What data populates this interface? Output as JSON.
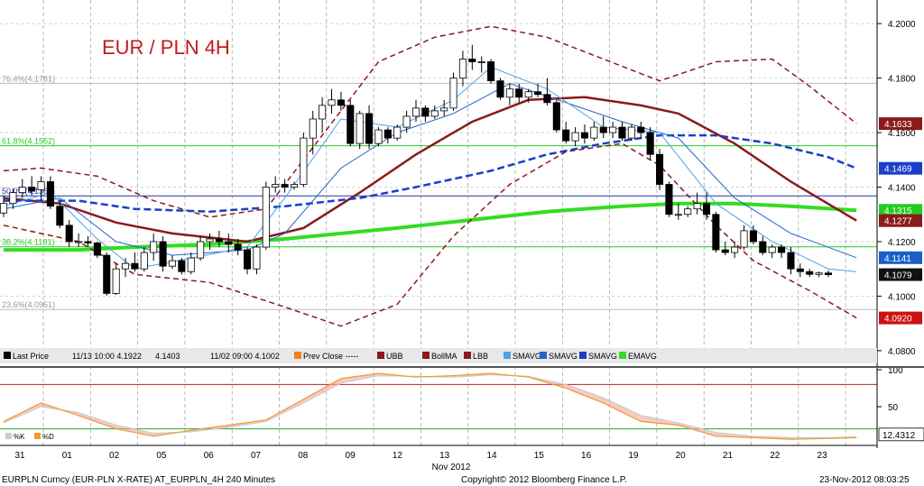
{
  "chart_data": {
    "type": "candlestick",
    "title": "EUR / PLN 4H",
    "y_range": [
      4.075,
      4.208
    ],
    "y_ticks": [
      "4.0800",
      "4.1000",
      "4.1200",
      "4.1400",
      "4.1600",
      "4.1800",
      "4.2000"
    ],
    "x_ticks": [
      {
        "label": "31",
        "x": 0.5
      },
      {
        "label": "01",
        "x": 1.5
      },
      {
        "label": "02",
        "x": 2.5
      },
      {
        "label": "05",
        "x": 3.5
      },
      {
        "label": "06",
        "x": 4.5
      },
      {
        "label": "07",
        "x": 5.5
      },
      {
        "label": "08",
        "x": 6.5
      },
      {
        "label": "09",
        "x": 7.5
      },
      {
        "label": "12",
        "x": 8.5
      },
      {
        "label": "13",
        "x": 9.5
      },
      {
        "label": "14",
        "x": 10.5
      },
      {
        "label": "15",
        "x": 11.5
      },
      {
        "label": "16",
        "x": 12.5
      },
      {
        "label": "19",
        "x": 13.5
      },
      {
        "label": "20",
        "x": 14.5
      },
      {
        "label": "21",
        "x": 15.5
      },
      {
        "label": "22",
        "x": 16.5
      },
      {
        "label": "23",
        "x": 17.5
      }
    ],
    "month_label": "Nov 2012",
    "fib_levels": [
      {
        "label": "76.4%(4.1781)",
        "value": 4.1781
      },
      {
        "label": "61.8%(4.1552)",
        "value": 4.1552
      },
      {
        "label": "50.0%(4.1368)",
        "value": 4.1368
      },
      {
        "label": "38.2%(4.1181)",
        "value": 4.1181
      },
      {
        "label": "23.6%(4.0951)",
        "value": 4.0951
      }
    ],
    "price_tags": [
      {
        "value": "4.1633",
        "color": "#8b1a1a"
      },
      {
        "value": "4.1469",
        "color": "#1a3ec8"
      },
      {
        "value": "4.1315",
        "color": "#22cc22"
      },
      {
        "value": "4.1277",
        "color": "#8b1a1a"
      },
      {
        "value": "4.1141",
        "color": "#1a5fc8"
      },
      {
        "value": "4.1079",
        "color": "#111111"
      },
      {
        "value": "4.0920",
        "color": "#cc1111"
      }
    ],
    "legend": [
      {
        "label": "Last Price"
      },
      {
        "label": "11/13 10:00 4.1922"
      },
      {
        "label": "4.1403"
      },
      {
        "label": "11/02 09:00 4.1002"
      },
      {
        "label": "Prev Close -----"
      },
      {
        "label": "UBB"
      },
      {
        "label": "BollMA"
      },
      {
        "label": "LBB"
      },
      {
        "label": "SMAVG"
      },
      {
        "label": "SMAVG"
      },
      {
        "label": "SMAVG"
      },
      {
        "label": "EMAVG"
      }
    ],
    "candles": [
      [
        4.1305,
        4.137,
        4.129,
        4.134
      ],
      [
        4.134,
        4.1395,
        4.132,
        4.138
      ],
      [
        4.138,
        4.143,
        4.136,
        4.14
      ],
      [
        4.14,
        4.144,
        4.137,
        4.1385
      ],
      [
        4.139,
        4.144,
        4.135,
        4.142
      ],
      [
        4.142,
        4.144,
        4.132,
        4.133
      ],
      [
        4.133,
        4.135,
        4.125,
        4.126
      ],
      [
        4.126,
        4.128,
        4.118,
        4.12
      ],
      [
        4.12,
        4.123,
        4.118,
        4.12
      ],
      [
        4.12,
        4.122,
        4.118,
        4.1195
      ],
      [
        4.1195,
        4.12,
        4.114,
        4.115
      ],
      [
        4.115,
        4.116,
        4.1002,
        4.101
      ],
      [
        4.101,
        4.112,
        4.1005,
        4.11
      ],
      [
        4.11,
        4.114,
        4.107,
        4.112
      ],
      [
        4.112,
        4.116,
        4.109,
        4.11
      ],
      [
        4.11,
        4.118,
        4.109,
        4.116
      ],
      [
        4.116,
        4.123,
        4.113,
        4.12
      ],
      [
        4.12,
        4.122,
        4.109,
        4.111
      ],
      [
        4.111,
        4.115,
        4.11,
        4.113
      ],
      [
        4.113,
        4.114,
        4.108,
        4.109
      ],
      [
        4.109,
        4.116,
        4.108,
        4.114
      ],
      [
        4.114,
        4.122,
        4.113,
        4.12
      ],
      [
        4.12,
        4.123,
        4.117,
        4.121
      ],
      [
        4.121,
        4.124,
        4.118,
        4.12
      ],
      [
        4.12,
        4.123,
        4.116,
        4.119
      ],
      [
        4.119,
        4.121,
        4.115,
        4.117
      ],
      [
        4.117,
        4.118,
        4.108,
        4.11
      ],
      [
        4.11,
        4.119,
        4.108,
        4.118
      ],
      [
        4.118,
        4.142,
        4.117,
        4.14
      ],
      [
        4.14,
        4.144,
        4.138,
        4.141
      ],
      [
        4.141,
        4.143,
        4.138,
        4.14
      ],
      [
        4.14,
        4.142,
        4.139,
        4.141
      ],
      [
        4.141,
        4.16,
        4.14,
        4.158
      ],
      [
        4.158,
        4.168,
        4.152,
        4.165
      ],
      [
        4.165,
        4.173,
        4.16,
        4.17
      ],
      [
        4.17,
        4.176,
        4.167,
        4.172
      ],
      [
        4.172,
        4.175,
        4.168,
        4.17
      ],
      [
        4.17,
        4.172,
        4.155,
        4.156
      ],
      [
        4.156,
        4.168,
        4.154,
        4.167
      ],
      [
        4.167,
        4.17,
        4.154,
        4.156
      ],
      [
        4.156,
        4.162,
        4.155,
        4.161
      ],
      [
        4.161,
        4.162,
        4.156,
        4.158
      ],
      [
        4.158,
        4.163,
        4.157,
        4.162
      ],
      [
        4.162,
        4.168,
        4.16,
        4.166
      ],
      [
        4.166,
        4.172,
        4.164,
        4.169
      ],
      [
        4.169,
        4.17,
        4.164,
        4.166
      ],
      [
        4.166,
        4.17,
        4.165,
        4.168
      ],
      [
        4.168,
        4.172,
        4.166,
        4.169
      ],
      [
        4.169,
        4.182,
        4.168,
        4.18
      ],
      [
        4.18,
        4.19,
        4.177,
        4.187
      ],
      [
        4.187,
        4.1922,
        4.183,
        4.186
      ],
      [
        4.186,
        4.188,
        4.182,
        4.186
      ],
      [
        4.186,
        4.187,
        4.178,
        4.179
      ],
      [
        4.179,
        4.18,
        4.172,
        4.173
      ],
      [
        4.173,
        4.178,
        4.17,
        4.176
      ],
      [
        4.176,
        4.178,
        4.171,
        4.173
      ],
      [
        4.173,
        4.176,
        4.171,
        4.175
      ],
      [
        4.175,
        4.178,
        4.173,
        4.174
      ],
      [
        4.174,
        4.18,
        4.17,
        4.171
      ],
      [
        4.171,
        4.172,
        4.16,
        4.161
      ],
      [
        4.161,
        4.164,
        4.156,
        4.157
      ],
      [
        4.157,
        4.162,
        4.155,
        4.16
      ],
      [
        4.16,
        4.163,
        4.156,
        4.158
      ],
      [
        4.158,
        4.164,
        4.157,
        4.162
      ],
      [
        4.162,
        4.166,
        4.158,
        4.16
      ],
      [
        4.16,
        4.164,
        4.158,
        4.162
      ],
      [
        4.162,
        4.164,
        4.157,
        4.158
      ],
      [
        4.158,
        4.163,
        4.157,
        4.162
      ],
      [
        4.162,
        4.164,
        4.158,
        4.16
      ],
      [
        4.16,
        4.162,
        4.15,
        4.152
      ],
      [
        4.152,
        4.154,
        4.139,
        4.141
      ],
      [
        4.141,
        4.142,
        4.129,
        4.13
      ],
      [
        4.13,
        4.134,
        4.128,
        4.13
      ],
      [
        4.13,
        4.133,
        4.129,
        4.132
      ],
      [
        4.132,
        4.138,
        4.13,
        4.134
      ],
      [
        4.134,
        4.138,
        4.128,
        4.13
      ],
      [
        4.13,
        4.131,
        4.116,
        4.117
      ],
      [
        4.117,
        4.12,
        4.115,
        4.116
      ],
      [
        4.116,
        4.12,
        4.114,
        4.118
      ],
      [
        4.118,
        4.126,
        4.117,
        4.124
      ],
      [
        4.124,
        4.126,
        4.119,
        4.12
      ],
      [
        4.12,
        4.122,
        4.115,
        4.116
      ],
      [
        4.116,
        4.119,
        4.114,
        4.118
      ],
      [
        4.118,
        4.119,
        4.114,
        4.116
      ],
      [
        4.116,
        4.118,
        4.108,
        4.11
      ],
      [
        4.11,
        4.112,
        4.107,
        4.109
      ],
      [
        4.109,
        4.11,
        4.107,
        4.108
      ],
      [
        4.108,
        4.109,
        4.107,
        4.1085
      ],
      [
        4.1085,
        4.1095,
        4.107,
        4.1079
      ]
    ],
    "bollinger_upper": [
      [
        0,
        4.146
      ],
      [
        4,
        4.147
      ],
      [
        10,
        4.144
      ],
      [
        16,
        4.135
      ],
      [
        22,
        4.129
      ],
      [
        28,
        4.132
      ],
      [
        34,
        4.159
      ],
      [
        40,
        4.186
      ],
      [
        46,
        4.195
      ],
      [
        52,
        4.199
      ],
      [
        58,
        4.195
      ],
      [
        64,
        4.187
      ],
      [
        70,
        4.179
      ],
      [
        76,
        4.186
      ],
      [
        82,
        4.187
      ],
      [
        86,
        4.177
      ],
      [
        91,
        4.1633
      ]
    ],
    "bollinger_mid": [
      [
        0,
        4.136
      ],
      [
        6,
        4.134
      ],
      [
        12,
        4.127
      ],
      [
        18,
        4.123
      ],
      [
        26,
        4.12
      ],
      [
        32,
        4.125
      ],
      [
        38,
        4.138
      ],
      [
        44,
        4.152
      ],
      [
        50,
        4.164
      ],
      [
        56,
        4.172
      ],
      [
        62,
        4.173
      ],
      [
        68,
        4.17
      ],
      [
        72,
        4.167
      ],
      [
        78,
        4.156
      ],
      [
        84,
        4.142
      ],
      [
        91,
        4.1277
      ]
    ],
    "bollinger_lower": [
      [
        0,
        4.126
      ],
      [
        8,
        4.12
      ],
      [
        14,
        4.108
      ],
      [
        22,
        4.105
      ],
      [
        30,
        4.096
      ],
      [
        36,
        4.089
      ],
      [
        42,
        4.097
      ],
      [
        48,
        4.122
      ],
      [
        54,
        4.141
      ],
      [
        60,
        4.153
      ],
      [
        66,
        4.156
      ],
      [
        70,
        4.148
      ],
      [
        76,
        4.126
      ],
      [
        80,
        4.113
      ],
      [
        86,
        4.102
      ],
      [
        91,
        4.092
      ]
    ],
    "sma_fast": [
      [
        0,
        4.133
      ],
      [
        5,
        4.138
      ],
      [
        10,
        4.121
      ],
      [
        14,
        4.11
      ],
      [
        20,
        4.114
      ],
      [
        26,
        4.118
      ],
      [
        30,
        4.136
      ],
      [
        36,
        4.165
      ],
      [
        42,
        4.162
      ],
      [
        48,
        4.172
      ],
      [
        52,
        4.184
      ],
      [
        58,
        4.176
      ],
      [
        64,
        4.162
      ],
      [
        70,
        4.16
      ],
      [
        76,
        4.134
      ],
      [
        82,
        4.12
      ],
      [
        88,
        4.11
      ],
      [
        91,
        4.109
      ]
    ],
    "sma_mid": [
      [
        0,
        4.132
      ],
      [
        6,
        4.136
      ],
      [
        12,
        4.12
      ],
      [
        18,
        4.115
      ],
      [
        26,
        4.117
      ],
      [
        30,
        4.123
      ],
      [
        36,
        4.147
      ],
      [
        42,
        4.16
      ],
      [
        48,
        4.167
      ],
      [
        54,
        4.178
      ],
      [
        60,
        4.171
      ],
      [
        66,
        4.164
      ],
      [
        72,
        4.158
      ],
      [
        78,
        4.136
      ],
      [
        84,
        4.123
      ],
      [
        91,
        4.1141
      ]
    ],
    "sma_slow": [
      [
        0,
        4.135
      ],
      [
        8,
        4.135
      ],
      [
        14,
        4.132
      ],
      [
        22,
        4.131
      ],
      [
        30,
        4.133
      ],
      [
        38,
        4.136
      ],
      [
        44,
        4.14
      ],
      [
        52,
        4.146
      ],
      [
        58,
        4.152
      ],
      [
        64,
        4.156
      ],
      [
        70,
        4.159
      ],
      [
        76,
        4.159
      ],
      [
        82,
        4.156
      ],
      [
        88,
        4.151
      ],
      [
        91,
        4.1469
      ]
    ],
    "ema": [
      [
        0,
        4.117
      ],
      [
        8,
        4.117
      ],
      [
        14,
        4.118
      ],
      [
        22,
        4.119
      ],
      [
        30,
        4.121
      ],
      [
        36,
        4.123
      ],
      [
        42,
        4.125
      ],
      [
        50,
        4.128
      ],
      [
        58,
        4.131
      ],
      [
        66,
        4.133
      ],
      [
        72,
        4.134
      ],
      [
        78,
        4.134
      ],
      [
        84,
        4.133
      ],
      [
        91,
        4.1315
      ]
    ],
    "oscillator": {
      "y_ticks": [
        "100",
        "50"
      ],
      "levels": [
        80,
        20
      ],
      "last_value": "12.4312",
      "legend": [
        "%K",
        "%D"
      ],
      "k": [
        [
          0,
          30
        ],
        [
          4,
          55
        ],
        [
          8,
          38
        ],
        [
          12,
          20
        ],
        [
          16,
          10
        ],
        [
          20,
          18
        ],
        [
          24,
          25
        ],
        [
          28,
          32
        ],
        [
          32,
          60
        ],
        [
          36,
          88
        ],
        [
          40,
          95
        ],
        [
          44,
          90
        ],
        [
          48,
          92
        ],
        [
          52,
          95
        ],
        [
          56,
          90
        ],
        [
          60,
          75
        ],
        [
          64,
          55
        ],
        [
          68,
          30
        ],
        [
          72,
          25
        ],
        [
          76,
          10
        ],
        [
          80,
          8
        ],
        [
          84,
          6
        ],
        [
          88,
          7
        ],
        [
          91,
          8
        ]
      ],
      "d": [
        [
          0,
          28
        ],
        [
          4,
          50
        ],
        [
          8,
          42
        ],
        [
          12,
          25
        ],
        [
          16,
          14
        ],
        [
          20,
          16
        ],
        [
          24,
          22
        ],
        [
          28,
          30
        ],
        [
          32,
          55
        ],
        [
          36,
          82
        ],
        [
          40,
          92
        ],
        [
          44,
          91
        ],
        [
          48,
          90
        ],
        [
          52,
          93
        ],
        [
          56,
          91
        ],
        [
          60,
          80
        ],
        [
          64,
          62
        ],
        [
          68,
          38
        ],
        [
          72,
          28
        ],
        [
          76,
          15
        ],
        [
          80,
          10
        ],
        [
          84,
          8
        ],
        [
          88,
          8
        ],
        [
          91,
          9
        ]
      ]
    }
  },
  "footer": {
    "left": "EURPLN Curncy (EUR-PLN X-RATE) AT_EURPLN_4H  240 Minutes",
    "center": "Copyright© 2012 Bloomberg Finance L.P.",
    "right": "23-Nov-2012 08:03:25"
  }
}
